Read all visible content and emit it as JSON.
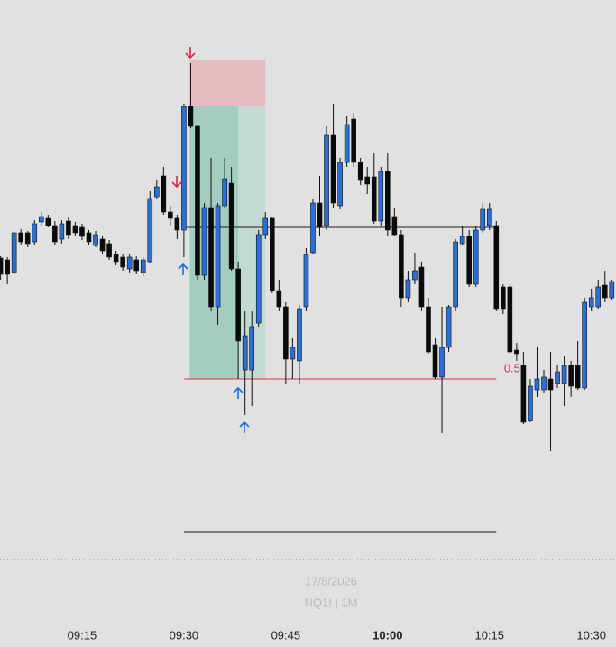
{
  "chart_data": {
    "type": "candlestick",
    "categories": [
      null,
      null,
      null,
      null,
      null,
      null,
      null,
      null,
      null,
      null,
      null,
      null,
      "09:15",
      null,
      null,
      null,
      null,
      null,
      null,
      null,
      null,
      null,
      null,
      null,
      null,
      null,
      null,
      "09:30",
      null,
      null,
      null,
      null,
      null,
      null,
      null,
      null,
      null,
      null,
      null,
      null,
      null,
      null,
      "09:45",
      null,
      null,
      null,
      null,
      null,
      null,
      null,
      null,
      null,
      null,
      null,
      null,
      null,
      null,
      "10:00",
      null,
      null,
      null,
      null,
      null,
      null,
      null,
      null,
      null,
      null,
      null,
      null,
      null,
      null,
      "10:15",
      null,
      null,
      null,
      null,
      null,
      null,
      null,
      null,
      null,
      null,
      null,
      null,
      null,
      null,
      "10:30",
      null,
      null,
      null
    ],
    "open": [
      314,
      312,
      298,
      342,
      342,
      332,
      354,
      358,
      350,
      335,
      355,
      350,
      348,
      342,
      328,
      335,
      330,
      318,
      315,
      302,
      312,
      298,
      310,
      382,
      405,
      365,
      358,
      345,
      482,
      460,
      295,
      370,
      260,
      372,
      397,
      302,
      190,
      190,
      242,
      340,
      358,
      278,
      260,
      202,
      200,
      260,
      320,
      375,
      350,
      450,
      372,
      420,
      468,
      420,
      404,
      404,
      355,
      410,
      360,
      340,
      270,
      290,
      304,
      260,
      218,
      182,
      215,
      260,
      330,
      338,
      285,
      345,
      350,
      350,
      282,
      282,
      212,
      195,
      134,
      168,
      168,
      180,
      175,
      175,
      195,
      195,
      170,
      260,
      260,
      284,
      270
    ],
    "high": [
      316,
      315,
      344,
      346,
      344,
      356,
      365,
      362,
      355,
      356,
      360,
      354,
      352,
      345,
      344,
      338,
      334,
      322,
      318,
      318,
      316,
      315,
      388,
      400,
      415,
      372,
      362,
      485,
      530,
      462,
      375,
      425,
      375,
      425,
      415,
      310,
      255,
      255,
      345,
      365,
      360,
      290,
      265,
      225,
      262,
      325,
      380,
      405,
      460,
      485,
      425,
      472,
      475,
      425,
      415,
      430,
      415,
      430,
      370,
      345,
      300,
      320,
      310,
      270,
      225,
      260,
      262,
      335,
      350,
      345,
      350,
      375,
      375,
      355,
      285,
      285,
      220,
      210,
      180,
      215,
      190,
      210,
      195,
      205,
      200,
      222,
      270,
      280,
      290,
      300,
      290
    ],
    "low": [
      290,
      285,
      296,
      328,
      326,
      328,
      350,
      348,
      328,
      330,
      335,
      338,
      334,
      328,
      326,
      318,
      312,
      306,
      300,
      298,
      296,
      294,
      308,
      380,
      362,
      350,
      335,
      315,
      458,
      290,
      290,
      255,
      240,
      370,
      300,
      180,
      140,
      150,
      238,
      335,
      275,
      255,
      175,
      180,
      175,
      255,
      318,
      338,
      345,
      370,
      368,
      415,
      415,
      395,
      385,
      352,
      350,
      338,
      338,
      260,
      265,
      285,
      255,
      208,
      180,
      120,
      210,
      255,
      328,
      282,
      282,
      342,
      345,
      255,
      252,
      208,
      200,
      130,
      132,
      160,
      165,
      100,
      170,
      150,
      160,
      168,
      168,
      255,
      258,
      265,
      268
    ],
    "close": [
      296,
      296,
      342,
      332,
      330,
      352,
      360,
      350,
      332,
      352,
      340,
      342,
      338,
      332,
      340,
      322,
      315,
      310,
      304,
      315,
      300,
      312,
      380,
      393,
      365,
      358,
      345,
      482,
      460,
      295,
      370,
      260,
      372,
      402,
      302,
      222,
      228,
      238,
      340,
      358,
      278,
      260,
      202,
      215,
      258,
      318,
      375,
      348,
      450,
      375,
      420,
      462,
      420,
      400,
      396,
      355,
      410,
      345,
      340,
      270,
      290,
      300,
      260,
      210,
      182,
      215,
      260,
      332,
      338,
      285,
      345,
      368,
      368,
      258,
      258,
      210,
      208,
      132,
      172,
      180,
      182,
      168,
      188,
      195,
      172,
      170,
      265,
      270,
      282,
      270,
      288
    ],
    "up_color": "#2b6fd6",
    "down_color": "#0a0a0a",
    "ylim": [
      0,
      600
    ],
    "bold_categories": [
      57
    ],
    "date": "17/8/2026",
    "symbol": "NQ1! | 1M",
    "levels": [
      {
        "value": 348,
        "color": "#1a1a1a"
      },
      {
        "value": 180,
        "color": "#d0324a",
        "label": "0.5"
      },
      {
        "value": 10,
        "color": "#1a1a1a"
      }
    ],
    "position_box": {
      "stop": 533,
      "entry": 482,
      "target": 180
    }
  }
}
